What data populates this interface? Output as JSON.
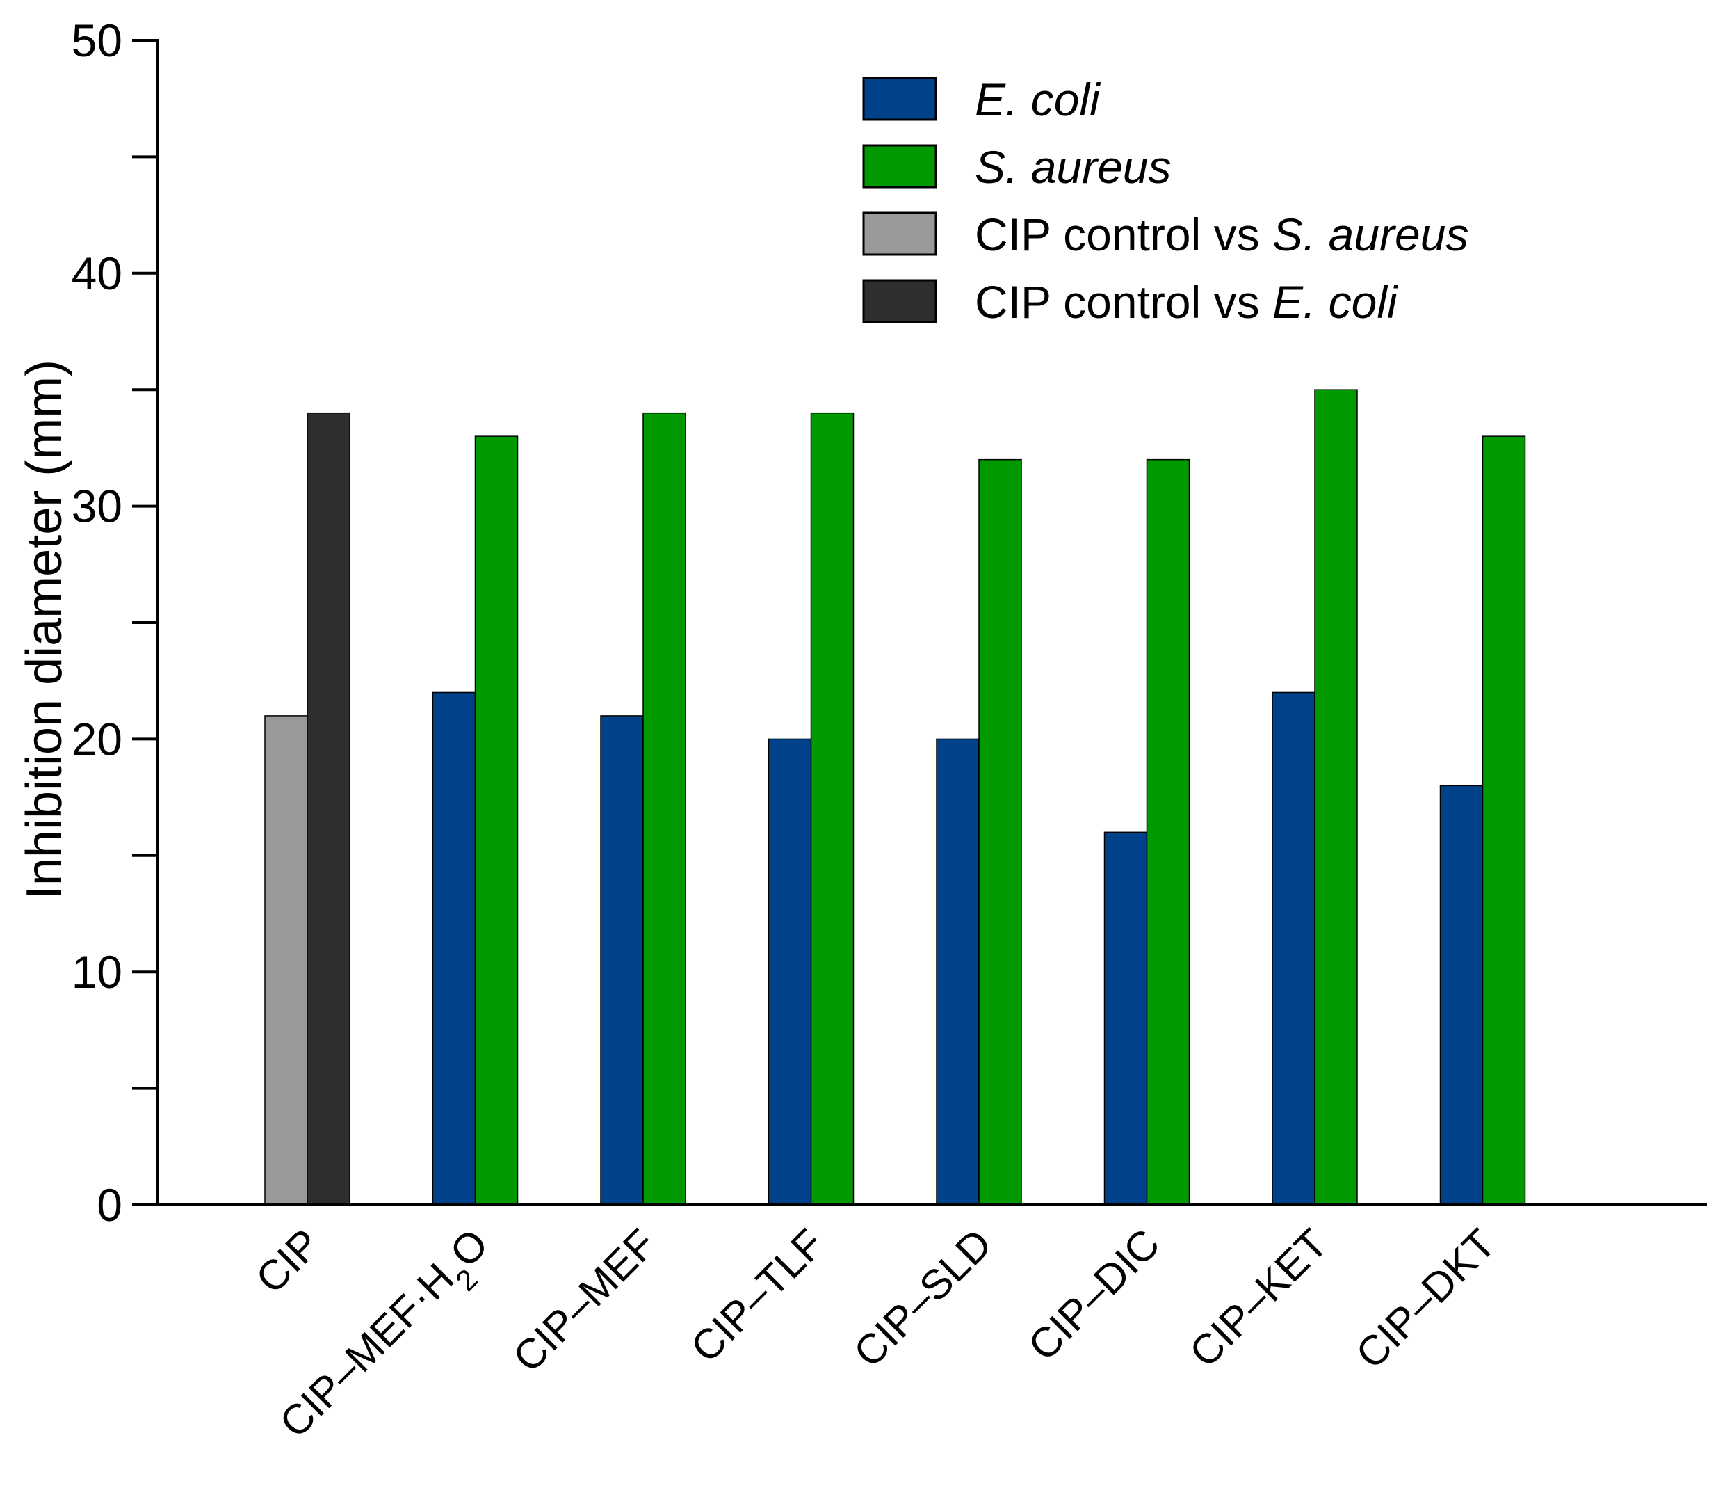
{
  "chart_data": {
    "type": "bar",
    "title": "",
    "xlabel": "",
    "ylabel": "Inhibition diameter (mm)",
    "ylim": [
      0,
      50
    ],
    "yticks": [
      0,
      10,
      20,
      30,
      40,
      50
    ],
    "grid": false,
    "legend_position": "top-right",
    "categories": [
      {
        "base": "CIP",
        "sub": "",
        "tail": ""
      },
      {
        "base": "CIP–MEF·H",
        "sub": "2",
        "tail": "O"
      },
      {
        "base": "CIP–MEF",
        "sub": "",
        "tail": ""
      },
      {
        "base": "CIP–TLF",
        "sub": "",
        "tail": ""
      },
      {
        "base": "CIP–SLD",
        "sub": "",
        "tail": ""
      },
      {
        "base": "CIP–DIC",
        "sub": "",
        "tail": ""
      },
      {
        "base": "CIP–KET",
        "sub": "",
        "tail": ""
      },
      {
        "base": "CIP–DKT",
        "sub": "",
        "tail": ""
      }
    ],
    "series": [
      {
        "name": "E. coli",
        "color": "#00428a",
        "values": [
          null,
          22,
          21,
          20,
          20,
          16,
          22,
          18
        ]
      },
      {
        "name": "S. aureus",
        "color": "#009900",
        "values": [
          null,
          33,
          34,
          34,
          32,
          32,
          35,
          33
        ]
      },
      {
        "name": "CIP control vs S. aureus",
        "color": "#999999",
        "values": [
          21,
          null,
          null,
          null,
          null,
          null,
          null,
          null
        ]
      },
      {
        "name": "CIP control vs E. coli",
        "color": "#2e2e2e",
        "values": [
          34,
          null,
          null,
          null,
          null,
          null,
          null,
          null
        ]
      }
    ],
    "legend": [
      {
        "color": "#00428a",
        "parts": [
          {
            "t": "E. coli",
            "i": true
          }
        ]
      },
      {
        "color": "#009900",
        "parts": [
          {
            "t": "S. aureus",
            "i": true
          }
        ]
      },
      {
        "color": "#999999",
        "parts": [
          {
            "t": "CIP control vs ",
            "i": false
          },
          {
            "t": "S. aureus",
            "i": true
          }
        ]
      },
      {
        "color": "#2e2e2e",
        "parts": [
          {
            "t": "CIP control vs ",
            "i": false
          },
          {
            "t": "E. coli",
            "i": true
          }
        ]
      }
    ]
  }
}
